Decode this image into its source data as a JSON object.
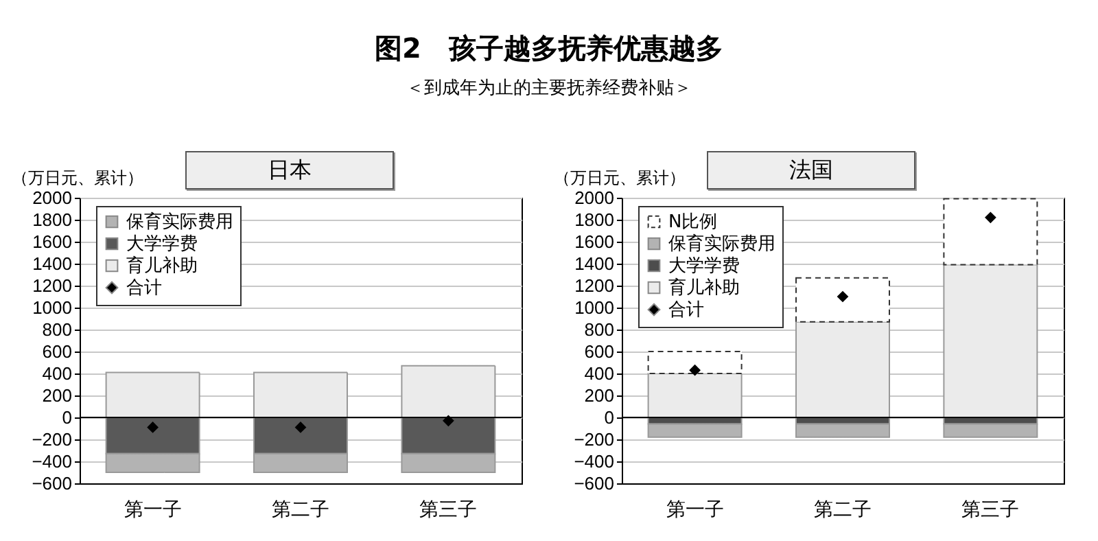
{
  "chart_data": [
    {
      "type": "bar",
      "title": "日本",
      "ylabel": "（万日元、累计）",
      "annotations": [
        "图2　孩子越多抚养优惠越多",
        "＜到成年为止的主要抚养经费补贴＞"
      ],
      "categories": [
        "第一子",
        "第二子",
        "第三子"
      ],
      "stacked": true,
      "ylim": [
        -600,
        2000
      ],
      "yticks": [
        -600,
        -400,
        -200,
        0,
        200,
        400,
        600,
        800,
        1000,
        1200,
        1400,
        1600,
        1800,
        2000
      ],
      "grid": "y",
      "legend": "top left",
      "ref_lines": [
        {
          "axis": "y",
          "value": 0,
          "color": "#000000"
        }
      ],
      "series": [
        {
          "name": "育儿补助",
          "color": "#ebebeb",
          "values": [
            410,
            410,
            470
          ]
        },
        {
          "name": "大学学费",
          "color": "#595959",
          "values": [
            -330,
            -330,
            -330
          ]
        },
        {
          "name": "保育实际费用",
          "color": "#b3b3b3",
          "values": [
            -170,
            -170,
            -170
          ]
        },
        {
          "name": "合计",
          "type": "scatter",
          "marker": "diamond",
          "color": "#000000",
          "values": [
            -90,
            -90,
            -30
          ]
        }
      ]
    },
    {
      "type": "bar",
      "title": "法国",
      "ylabel": "（万日元、累计）",
      "categories": [
        "第一子",
        "第二子",
        "第三子"
      ],
      "stacked": true,
      "ylim": [
        -600,
        2000
      ],
      "yticks": [
        -600,
        -400,
        -200,
        0,
        200,
        400,
        600,
        800,
        1000,
        1200,
        1400,
        1600,
        1800,
        2000
      ],
      "grid": "y",
      "legend": "top left",
      "ref_lines": [
        {
          "axis": "y",
          "value": 0,
          "color": "#000000"
        }
      ],
      "series": [
        {
          "name": "育儿补助",
          "color": "#ebebeb",
          "values": [
            400,
            870,
            1390
          ]
        },
        {
          "name": "大学学费",
          "color": "#4d4d4d",
          "values": [
            -60,
            -60,
            -60
          ]
        },
        {
          "name": "保育实际费用",
          "color": "#b3b3b3",
          "values": [
            -120,
            -120,
            -120
          ]
        },
        {
          "name": "N比例",
          "color": "#333333",
          "line_style": "dashed",
          "values": [
            200,
            400,
            600
          ]
        },
        {
          "name": "合计",
          "type": "scatter",
          "marker": "diamond",
          "color": "#000000",
          "values": [
            430,
            1100,
            1820
          ]
        }
      ]
    }
  ]
}
